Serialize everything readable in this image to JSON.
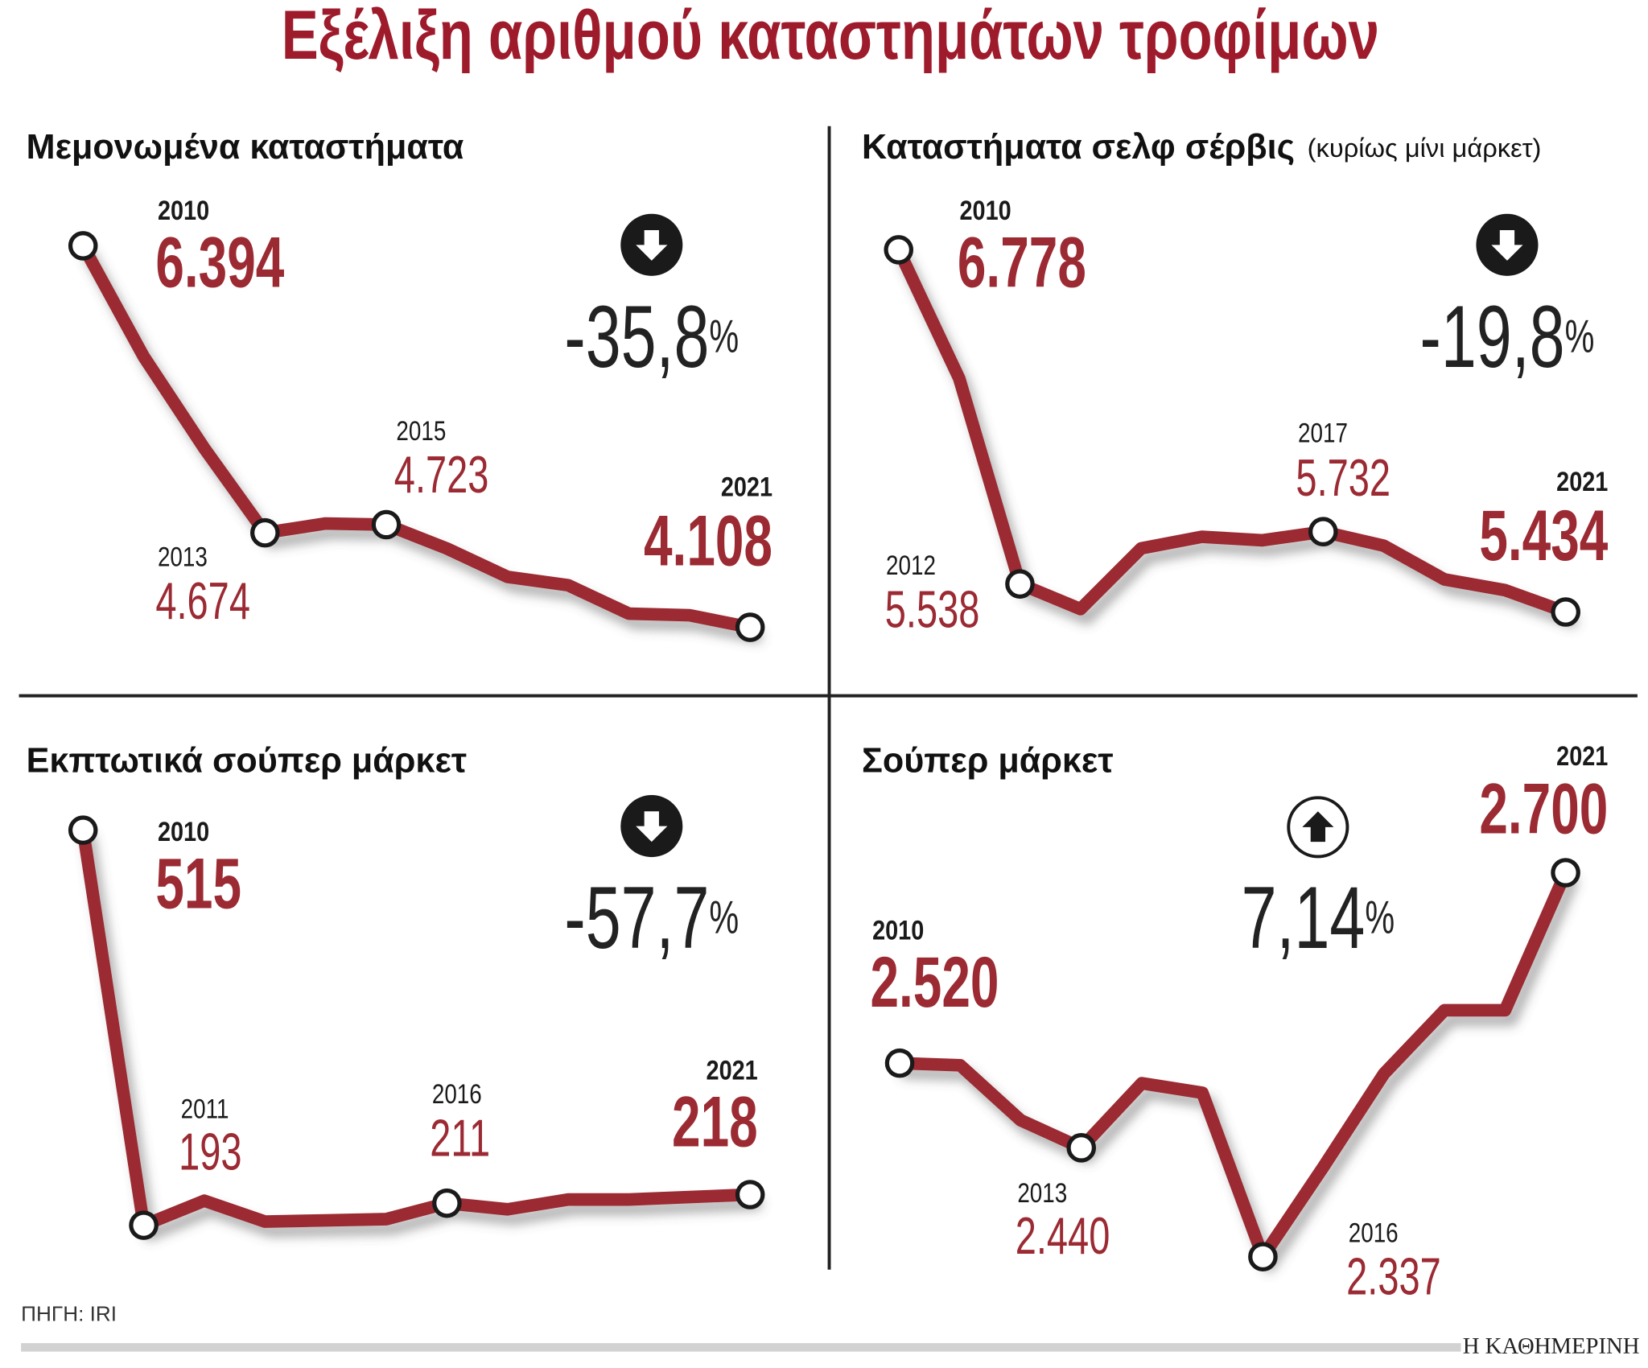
{
  "title": "Εξέλιξη αριθμού καταστημάτων τροφίμων",
  "source": "ΠΗΓΗ: IRI",
  "publisher": "Η ΚΑΘΗΜΕΡΙΝΗ",
  "chart_data": [
    {
      "type": "line",
      "title": "Μεμονωμένα καταστήματα",
      "categories": [
        "2010",
        null,
        null,
        "2013",
        null,
        "2015",
        null,
        null,
        null,
        null,
        null,
        "2021"
      ],
      "values": [
        6394,
        5730,
        5180,
        4674,
        4730,
        4723,
        4580,
        4410,
        4360,
        4190,
        4180,
        4108
      ],
      "value_labels": [
        "6.394",
        null,
        null,
        "4.674",
        null,
        "4.723",
        null,
        null,
        null,
        null,
        null,
        "4.108"
      ],
      "color": "#9b2a33",
      "ylim": [
        4000,
        6500
      ],
      "change": {
        "value": -35.8,
        "label": "-35,8"
      },
      "change_unit": "%"
    },
    {
      "type": "line",
      "title": "Καταστήματα σελφ σέρβις",
      "subtitle": "(κυρίως μίνι μάρκετ)",
      "categories": [
        "2010",
        null,
        "2012",
        null,
        null,
        null,
        null,
        "2017",
        null,
        null,
        null,
        "2021"
      ],
      "values": [
        6778,
        6300,
        5538,
        5445,
        5670,
        5713,
        5700,
        5732,
        5680,
        5555,
        5515,
        5434
      ],
      "value_labels": [
        "6.778",
        null,
        "5.538",
        null,
        null,
        null,
        null,
        "5.732",
        null,
        null,
        null,
        "5.434"
      ],
      "color": "#9b2a33",
      "ylim": [
        5400,
        6800
      ],
      "change": {
        "value": -19.8,
        "label": "-19,8"
      },
      "change_unit": "%"
    },
    {
      "type": "line",
      "title": "Εκπτωτικά σούπερ μάρκετ",
      "categories": [
        "2010",
        "2011",
        null,
        null,
        null,
        null,
        "2016",
        null,
        null,
        null,
        null,
        "2021"
      ],
      "values": [
        515,
        193,
        213,
        196,
        197,
        198,
        211,
        206,
        214,
        214,
        216,
        218
      ],
      "value_labels": [
        "515",
        "193",
        null,
        null,
        null,
        null,
        "211",
        null,
        null,
        null,
        null,
        "218"
      ],
      "color": "#9b2a33",
      "ylim": [
        150,
        550
      ],
      "change": {
        "value": -57.7,
        "label": "-57,7"
      },
      "change_unit": "%"
    },
    {
      "type": "line",
      "title": "Σούπερ μάρκετ",
      "categories": [
        "2010",
        null,
        null,
        "2013",
        null,
        null,
        "2016",
        null,
        null,
        null,
        null,
        "2021"
      ],
      "values": [
        2520,
        2518,
        2466,
        2440,
        2501,
        2492,
        2337,
        2422,
        2510,
        2570,
        2570,
        2700
      ],
      "value_labels": [
        "2.520",
        null,
        null,
        "2.440",
        null,
        null,
        "2.337",
        null,
        null,
        null,
        null,
        "2.700"
      ],
      "color": "#9b2a33",
      "ylim": [
        2300,
        2750
      ],
      "change": {
        "value": 7.14,
        "label": "7,14"
      },
      "change_unit": "%"
    }
  ]
}
